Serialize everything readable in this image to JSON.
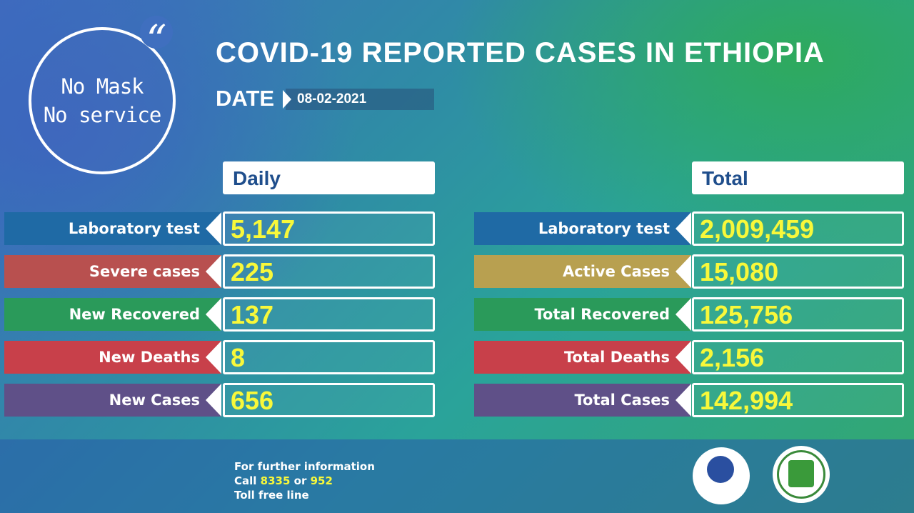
{
  "mask_badge": {
    "line1": "No Mask",
    "line2": "No service",
    "quote": "“"
  },
  "header": {
    "title": "COVID-19 REPORTED CASES IN ETHIOPIA",
    "date_label": "DATE",
    "date_value": "08-02-2021"
  },
  "daily": {
    "heading": "Daily",
    "rows": [
      {
        "label": "Laboratory test",
        "value": "5,147",
        "color": "#1f6aa5"
      },
      {
        "label": "Severe cases",
        "value": "225",
        "color": "#b8504f"
      },
      {
        "label": "New Recovered",
        "value": "137",
        "color": "#2a9a5a"
      },
      {
        "label": "New Deaths",
        "value": "8",
        "color": "#c8404a"
      },
      {
        "label": "New Cases",
        "value": "656",
        "color": "#5f5088"
      }
    ]
  },
  "total": {
    "heading": "Total",
    "rows": [
      {
        "label": "Laboratory test",
        "value": "2,009,459",
        "color": "#1f6aa5"
      },
      {
        "label": "Active Cases",
        "value": "15,080",
        "color": "#b8a050"
      },
      {
        "label": "Total Recovered",
        "value": "125,756",
        "color": "#2a9a5a"
      },
      {
        "label": "Total Deaths",
        "value": "2,156",
        "color": "#c8404a"
      },
      {
        "label": "Total Cases",
        "value": "142,994",
        "color": "#5f5088"
      }
    ]
  },
  "footer": {
    "line1": "For further information",
    "call_prefix": "Call",
    "number1": "8335",
    "or": "or",
    "number2": "952",
    "line3": "Toll free line"
  },
  "colors": {
    "value_text": "#f8f83a",
    "heading_text": "#1f4e8c"
  },
  "icons": {
    "logo_left": "ministry-of-health-logo",
    "logo_right": "ethiopian-public-health-institute-logo"
  }
}
